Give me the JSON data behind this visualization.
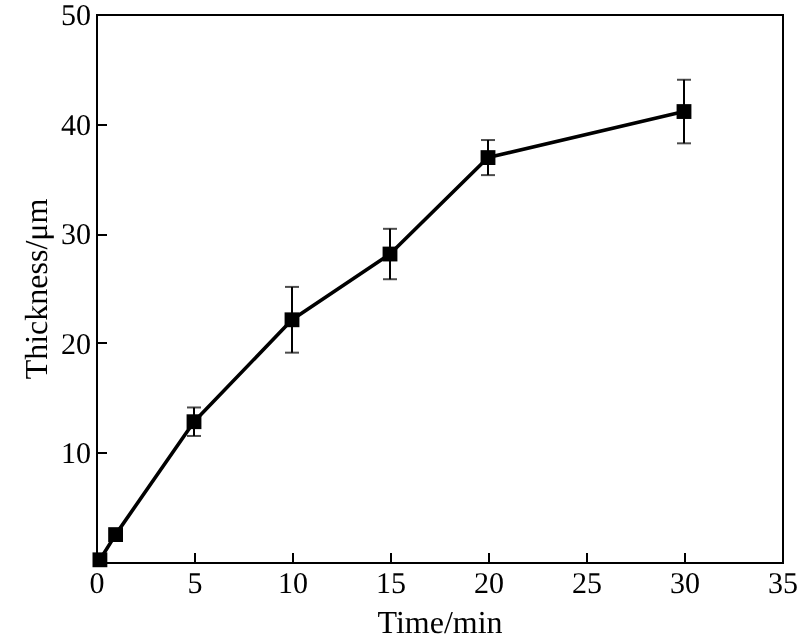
{
  "chart_data": {
    "type": "line",
    "xlabel": "Time/min",
    "ylabel": "Thickness/μm",
    "x": [
      0.2,
      1,
      5,
      10,
      15,
      20,
      30
    ],
    "series": [
      {
        "color": "#000000",
        "values": [
          0.2,
          2.5,
          12.8,
          22.1,
          28.1,
          36.9,
          41.1
        ],
        "errors": [
          null,
          null,
          1.3,
          3,
          2.3,
          1.6,
          2.9
        ]
      }
    ],
    "xlim": [
      0,
      35
    ],
    "xticks": [
      0,
      5,
      10,
      15,
      20,
      25,
      30,
      35
    ],
    "ylim": [
      0,
      50
    ],
    "yticks": [
      {
        "value": 0,
        "label": null
      },
      10,
      20,
      30,
      40,
      50
    ],
    "grid": false,
    "marker": "square",
    "line_style": "solid"
  }
}
